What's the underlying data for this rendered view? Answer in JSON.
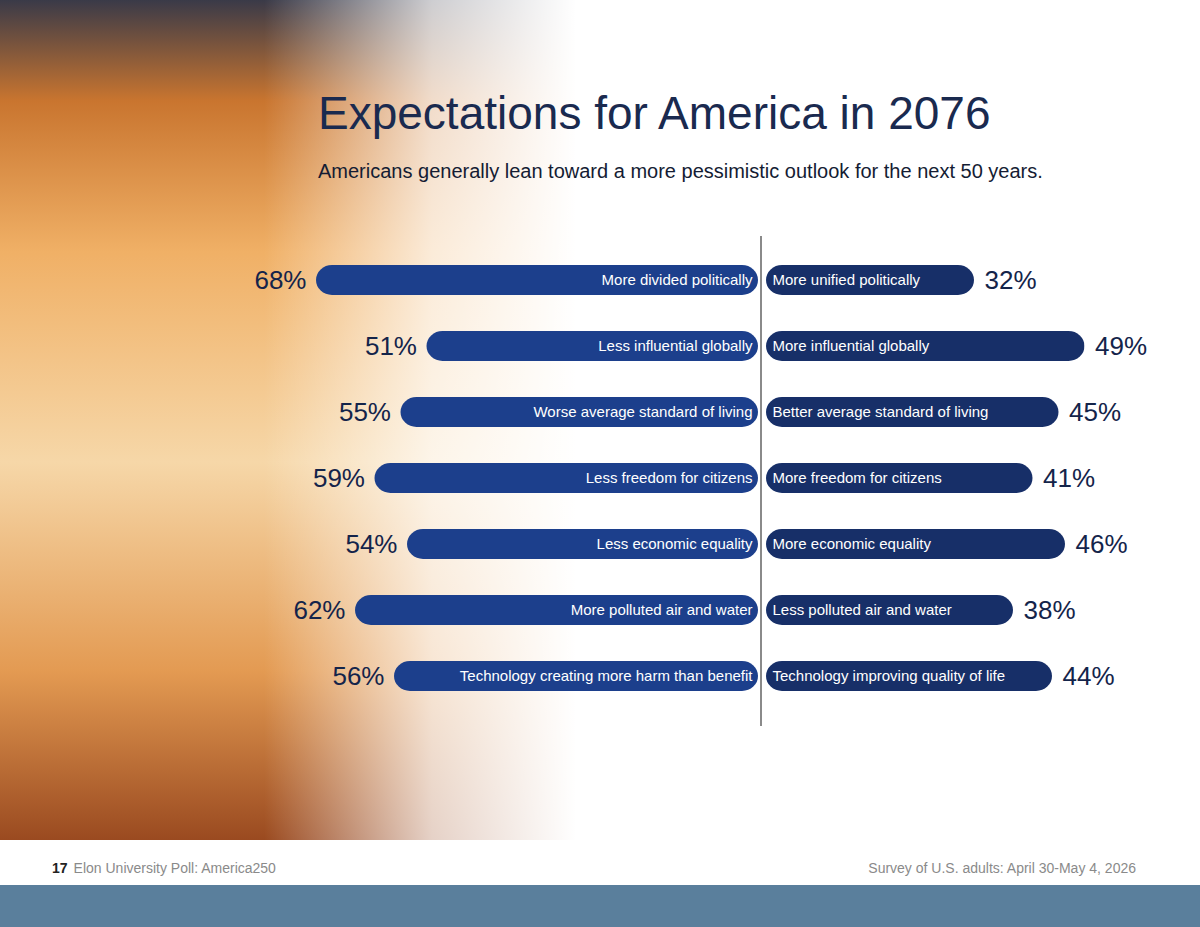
{
  "chart_data": {
    "type": "bar",
    "orientation": "horizontal",
    "title": "Expectations for America in 2076",
    "subtitle": "Americans generally lean toward a more pessimistic outlook for the next 50 years.",
    "data_labels": true,
    "tick_labels": false,
    "grid": false,
    "series": [
      {
        "labels": [
          "More divided politically",
          "Less influential globally",
          "Worse average standard of living",
          "Less freedom for citizens",
          "Less economic equality",
          "More polluted air and water",
          "Technology creating more harm than benefit"
        ],
        "values": [
          68,
          51,
          55,
          59,
          54,
          62,
          56
        ],
        "value_labels": [
          "68%",
          "51%",
          "55%",
          "59%",
          "54%",
          "62%",
          "56%"
        ],
        "color": "#1c3f8c",
        "xlim": [
          0,
          68
        ]
      },
      {
        "labels": [
          "More unified politically",
          "More influential globally",
          "Better average standard of living",
          "More freedom for citizens",
          "More economic equality",
          "Less polluted air and water",
          "Technology improving quality of life"
        ],
        "values": [
          32,
          49,
          45,
          41,
          46,
          38,
          44
        ],
        "value_labels": [
          "32%",
          "49%",
          "45%",
          "41%",
          "46%",
          "38%",
          "44%"
        ],
        "color": "#172f68",
        "xlim": [
          0,
          49
        ]
      }
    ]
  },
  "footer": {
    "page_number": 17,
    "source": "Elon University Poll: America250",
    "note": "Survey of U.S. adults: April 30-May 4, 2026"
  }
}
